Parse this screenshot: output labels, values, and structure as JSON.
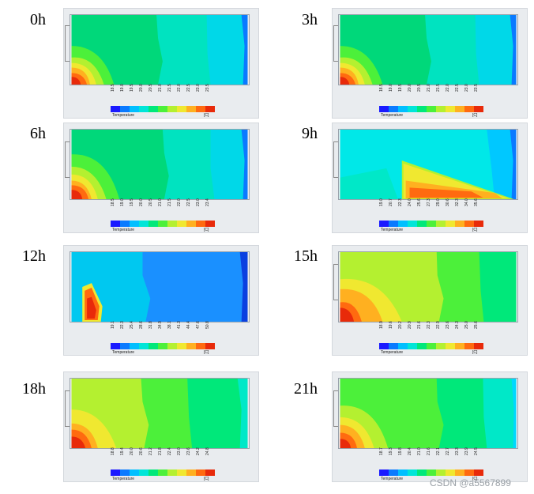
{
  "panels": [
    {
      "time": "0h",
      "ticks": [
        "18.5",
        "19.0",
        "19.5",
        "20.0",
        "20.5",
        "21.0",
        "21.5",
        "22.0",
        "22.5",
        "23.0",
        "23.5"
      ],
      "legend_title": "Temperature",
      "unit": "[C]"
    },
    {
      "time": "3h",
      "ticks": [
        "18.5",
        "19.0",
        "19.5",
        "20.0",
        "20.5",
        "21.0",
        "21.5",
        "22.0",
        "22.5",
        "23.0",
        "23.5"
      ],
      "legend_title": "Temperature",
      "unit": "[C]"
    },
    {
      "time": "6h",
      "ticks": [
        "18.5",
        "19.0",
        "19.5",
        "20.0",
        "20.5",
        "21.0",
        "21.5",
        "22.0",
        "22.5",
        "23.0",
        "23.4"
      ],
      "legend_title": "Temperature",
      "unit": "[C]"
    },
    {
      "time": "9h",
      "ticks": [
        "19.0",
        "20.7",
        "22.3",
        "24.0",
        "25.6",
        "27.3",
        "29.0",
        "30.6",
        "32.3",
        "34.0",
        "35.6"
      ],
      "legend_title": "Temperature",
      "unit": "[C]"
    },
    {
      "time": "12h",
      "ticks": [
        "19.1",
        "22.3",
        "25.4",
        "28.6",
        "31.8",
        "34.9",
        "38.1",
        "41.3",
        "44.4",
        "47.6",
        "50.8"
      ],
      "legend_title": "Temperature",
      "unit": "[C]"
    },
    {
      "time": "15h",
      "ticks": [
        "18.9",
        "19.6",
        "20.2",
        "20.9",
        "21.6",
        "22.3",
        "22.9",
        "23.6",
        "24.3",
        "25.0",
        "25.6"
      ],
      "legend_title": "Temperature",
      "unit": "[C]"
    },
    {
      "time": "18h",
      "ticks": [
        "18.8",
        "19.4",
        "20.0",
        "20.6",
        "21.2",
        "21.8",
        "22.4",
        "23.0",
        "23.6",
        "24.2",
        "24.8"
      ],
      "legend_title": "Temperature",
      "unit": "[C]"
    },
    {
      "time": "21h",
      "ticks": [
        "18.7",
        "19.3",
        "19.8",
        "20.4",
        "21.0",
        "21.6",
        "22.1",
        "22.7",
        "23.3",
        "23.9",
        "24.5"
      ],
      "legend_title": "Temperature",
      "unit": "[C]"
    }
  ],
  "legend_colors": [
    "#1a1aff",
    "#0a7aff",
    "#00bfff",
    "#00e5d8",
    "#00e87a",
    "#4cf03a",
    "#b4f030",
    "#f0e830",
    "#ffb020",
    "#ff6a10",
    "#e82a0a"
  ],
  "watermark": "CSDN @a5567899"
}
